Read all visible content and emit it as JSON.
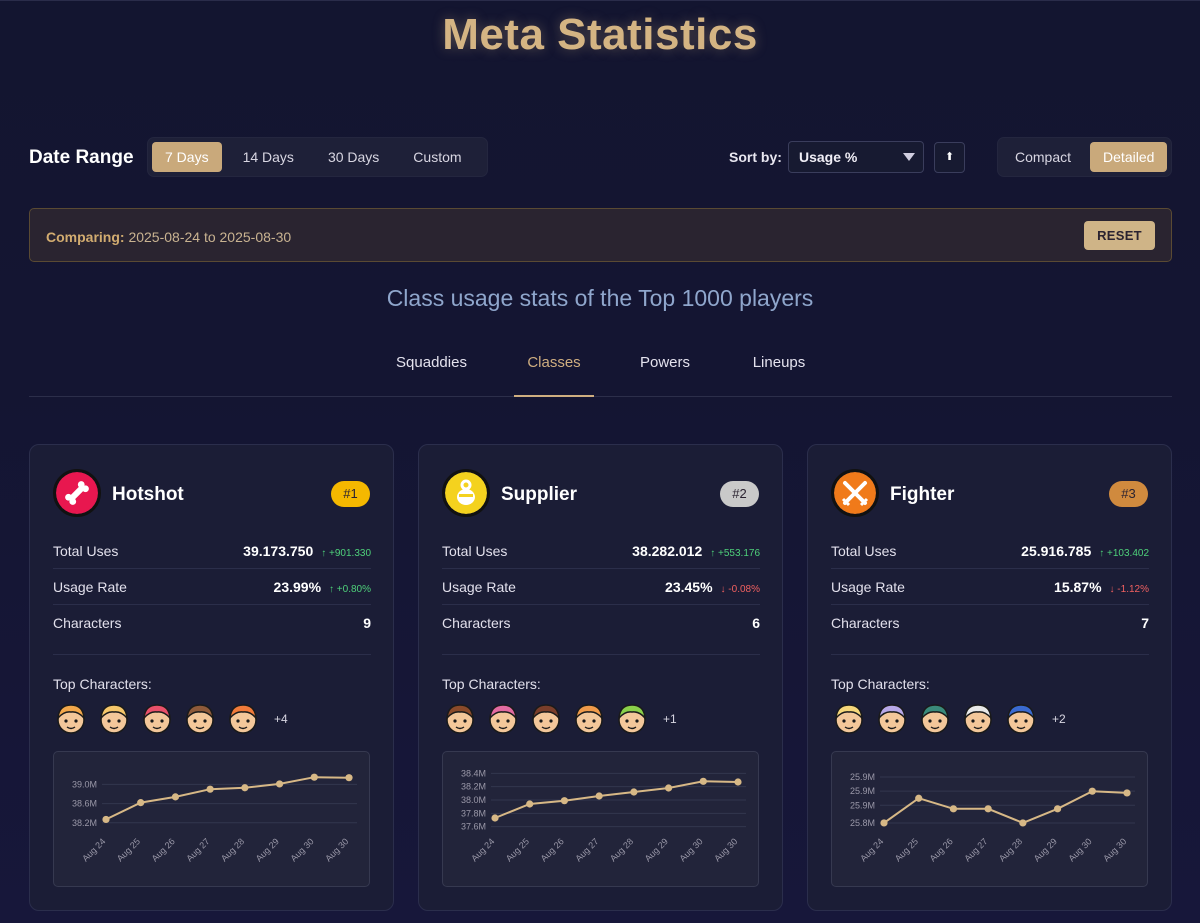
{
  "title": "Meta Statistics",
  "controls": {
    "date_range_label": "Date Range",
    "date_options": [
      "7 Days",
      "14 Days",
      "30 Days",
      "Custom"
    ],
    "date_selected": "7 Days",
    "sort_label": "Sort by:",
    "sort_value": "Usage %",
    "sort_direction_icon": "arrow-up-icon",
    "sort_direction_glyph": "⬆",
    "view_options": [
      "Compact",
      "Detailed"
    ],
    "view_selected": "Detailed"
  },
  "comparing": {
    "label": "Comparing:",
    "range": "2025-08-24 to 2025-08-30",
    "reset_label": "RESET"
  },
  "subtitle": "Class usage stats of the Top 1000 players",
  "tabs": [
    "Squaddies",
    "Classes",
    "Powers",
    "Lineups"
  ],
  "active_tab": "Classes",
  "labels": {
    "total_uses": "Total Uses",
    "usage_rate": "Usage Rate",
    "characters": "Characters",
    "top_characters": "Top Characters:"
  },
  "cards": [
    {
      "name": "Hotshot",
      "icon": "hotshot-bone-icon",
      "icon_color": "#e8174f",
      "rank": "#1",
      "rank_color": "#f5b800",
      "total_uses": "39.173.750",
      "total_uses_delta": "↑ +901.330",
      "total_uses_trend": "up",
      "usage_rate": "23.99%",
      "usage_rate_delta": "↑ +0.80%",
      "usage_rate_trend": "up",
      "characters": "9",
      "more": "+4",
      "avatar_colors": [
        "#f2a74b",
        "#f5c66a",
        "#e9506a",
        "#8e5a3a",
        "#f07a3a"
      ]
    },
    {
      "name": "Supplier",
      "icon": "supplier-sack-icon",
      "icon_color": "#f4d21e",
      "rank": "#2",
      "rank_color": "#c9c9c9",
      "total_uses": "38.282.012",
      "total_uses_delta": "↑ +553.176",
      "total_uses_trend": "up",
      "usage_rate": "23.45%",
      "usage_rate_delta": "↓ -0.08%",
      "usage_rate_trend": "down",
      "characters": "6",
      "more": "+1",
      "avatar_colors": [
        "#8a4a2a",
        "#e26aa0",
        "#7a3e2a",
        "#f09a4a",
        "#8ad04a"
      ]
    },
    {
      "name": "Fighter",
      "icon": "fighter-swords-icon",
      "icon_color": "#f07a1a",
      "rank": "#3",
      "rank_color": "#d08a3e",
      "total_uses": "25.916.785",
      "total_uses_delta": "↑ +103.402",
      "total_uses_trend": "up",
      "usage_rate": "15.87%",
      "usage_rate_delta": "↓ -1.12%",
      "usage_rate_trend": "down",
      "characters": "7",
      "more": "+2",
      "avatar_colors": [
        "#f6d77a",
        "#b8a8e8",
        "#3a8a7a",
        "#e8e8e8",
        "#3a6ad0"
      ]
    }
  ],
  "chart_data": [
    {
      "type": "line",
      "categories": [
        "Aug 24",
        "Aug 25",
        "Aug 26",
        "Aug 27",
        "Aug 28",
        "Aug 29",
        "Aug 30",
        "Aug 30"
      ],
      "values": [
        38.27,
        38.62,
        38.74,
        38.9,
        38.93,
        39.01,
        39.15,
        39.14
      ],
      "y_ticks": [
        "39.0M",
        "38.6M",
        "38.2M"
      ],
      "y_tick_values": [
        39.0,
        38.6,
        38.2
      ],
      "ylim": [
        38.05,
        39.3
      ],
      "line_color": "#d7b886"
    },
    {
      "type": "line",
      "categories": [
        "Aug 24",
        "Aug 25",
        "Aug 26",
        "Aug 27",
        "Aug 28",
        "Aug 29",
        "Aug 30",
        "Aug 30"
      ],
      "values": [
        37.73,
        37.94,
        37.99,
        38.06,
        38.12,
        38.18,
        38.28,
        38.27
      ],
      "y_ticks": [
        "38.4M",
        "38.2M",
        "38.0M",
        "37.8M",
        "37.6M"
      ],
      "y_tick_values": [
        38.4,
        38.2,
        38.0,
        37.8,
        37.6
      ],
      "ylim": [
        37.55,
        38.45
      ],
      "line_color": "#d7b886"
    },
    {
      "type": "line",
      "categories": [
        "Aug 24",
        "Aug 25",
        "Aug 26",
        "Aug 27",
        "Aug 28",
        "Aug 29",
        "Aug 30",
        "Aug 30"
      ],
      "values": [
        25.82,
        25.89,
        25.86,
        25.86,
        25.82,
        25.86,
        25.91,
        25.905
      ],
      "y_ticks": [
        "25.9M",
        "25.9M",
        "25.9M",
        "25.8M"
      ],
      "y_tick_values": [
        25.95,
        25.91,
        25.87,
        25.82
      ],
      "ylim": [
        25.8,
        25.97
      ],
      "line_color": "#d7b886"
    }
  ]
}
